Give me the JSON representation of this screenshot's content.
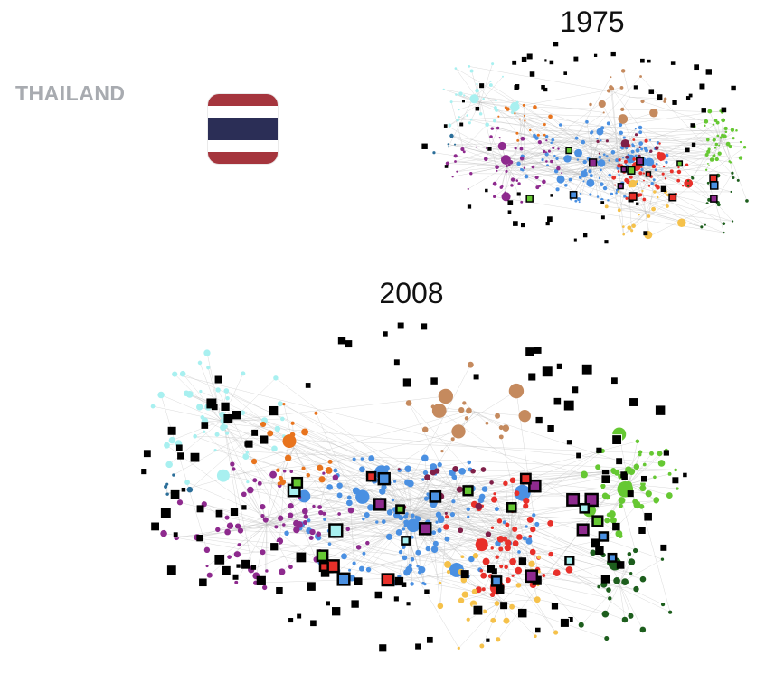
{
  "country": {
    "name": "THAILAND"
  },
  "flag": {
    "stripes": [
      "#a5353d",
      "#ffffff",
      "#2b2e56",
      "#ffffff",
      "#a5353d"
    ],
    "stripe_ratio": [
      1,
      1,
      2,
      1,
      1
    ]
  },
  "networks": [
    {
      "year": "1975",
      "scale": 0.55
    },
    {
      "year": "2008",
      "scale": 1.0
    }
  ],
  "colors": {
    "edge": "#b9b9b9",
    "clusters": [
      "#4a90e2",
      "#8e2a8e",
      "#e8302a",
      "#66c833",
      "#a8f0f0",
      "#e8741e",
      "#f5c14a",
      "#2b6e99",
      "#5a0a0a",
      "#1d5e1d",
      "#c58a5e",
      "#7f1f48",
      "#000000"
    ]
  }
}
